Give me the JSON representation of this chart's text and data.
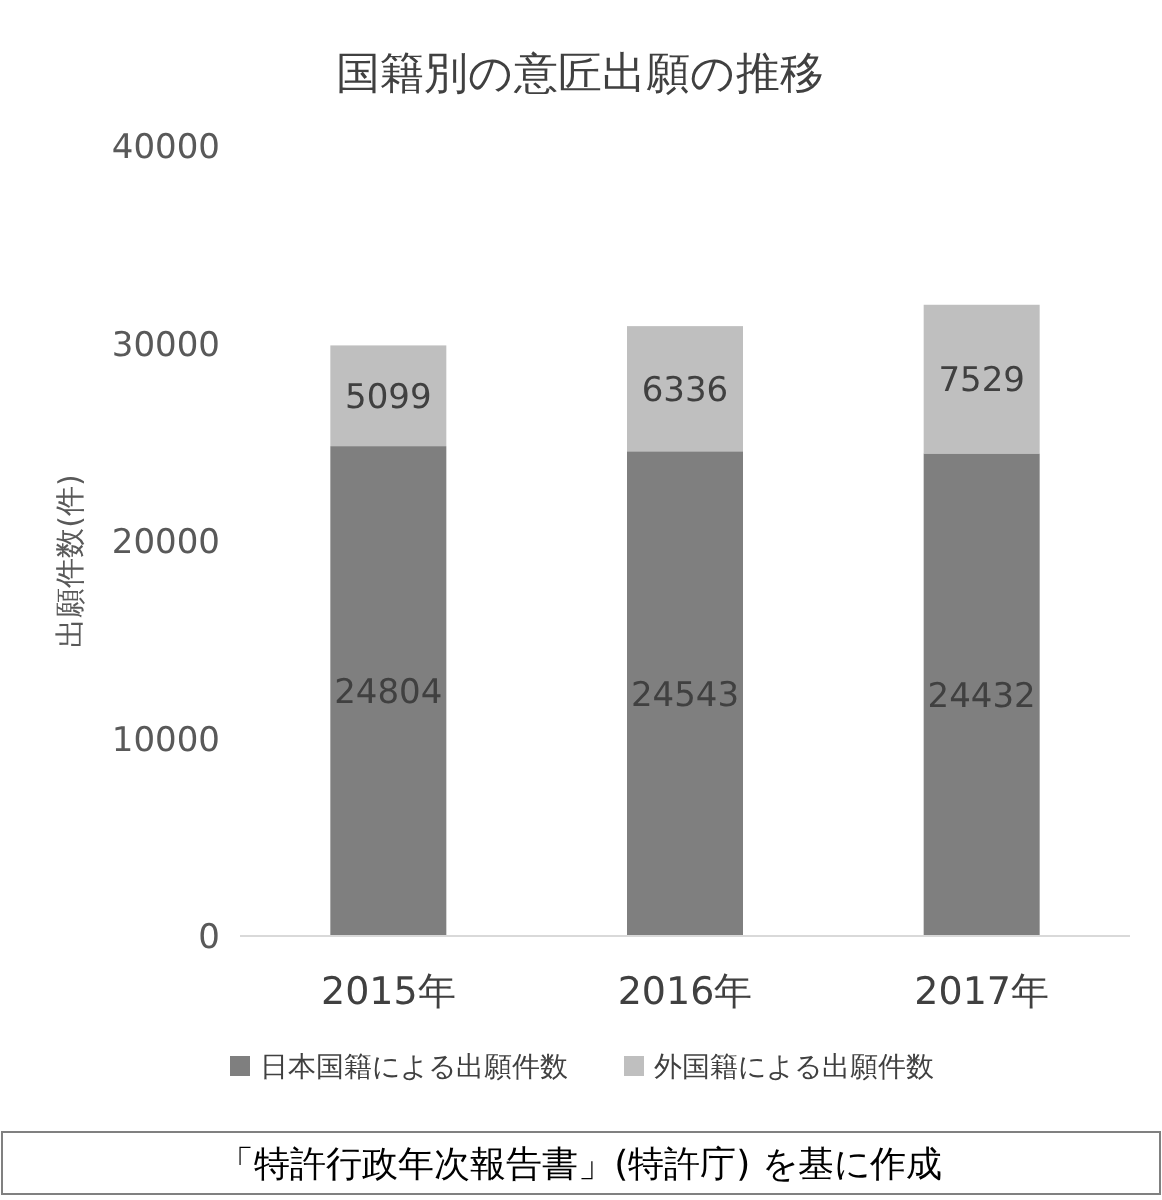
{
  "chart_data": {
    "type": "bar",
    "stacked": true,
    "title": "国籍別の意匠出願の推移",
    "ylabel": "出願件数(件)",
    "categories": [
      "2015年",
      "2016年",
      "2017年"
    ],
    "series": [
      {
        "name": "日本国籍による出願件数",
        "color": "#7f7f7f",
        "values": [
          24804,
          24543,
          24432
        ]
      },
      {
        "name": "外国籍による出願件数",
        "color": "#bfbfbf",
        "values": [
          5099,
          6336,
          7529
        ]
      }
    ],
    "ylim": [
      0,
      40000
    ],
    "yticks": [
      0,
      10000,
      20000,
      30000,
      40000
    ],
    "data_labels": true,
    "legend": "bottom",
    "annotations": [
      "「特許行政年次報告書」(特許庁) を基に作成"
    ]
  }
}
